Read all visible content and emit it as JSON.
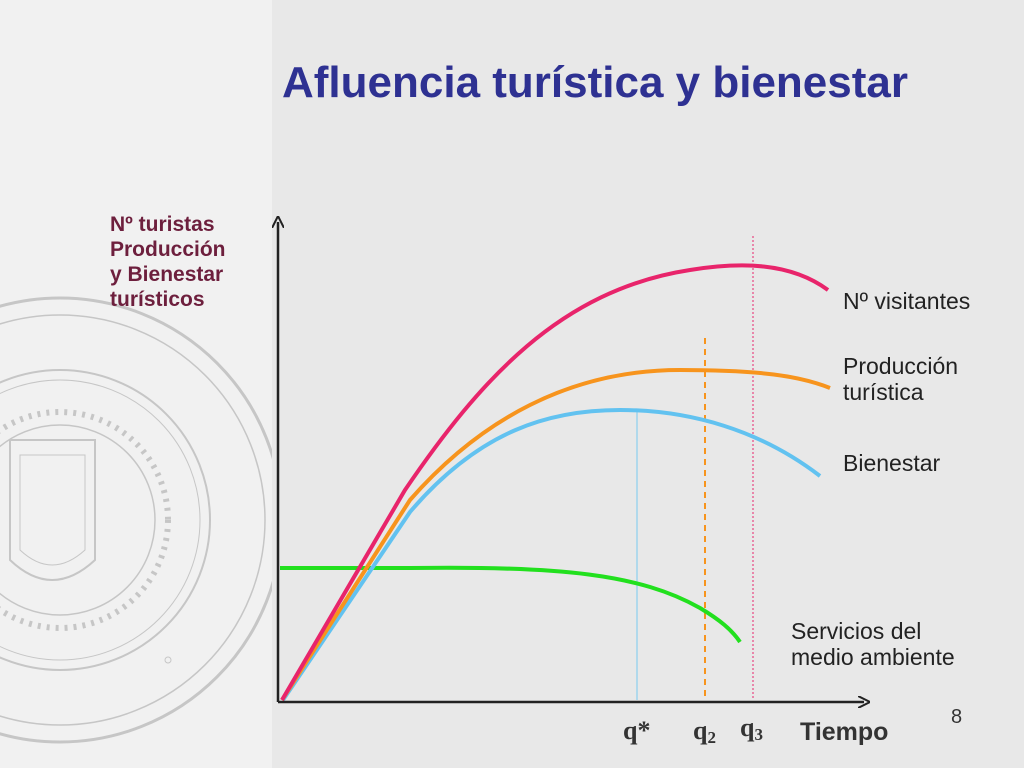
{
  "slide": {
    "title": "Afluencia turística y bienestar",
    "page_number": "8",
    "colors": {
      "title": "#2e3192",
      "ylabel": "#6d1f3d",
      "background": "#e8e8e8",
      "panel": "#f1f1f1"
    }
  },
  "chart_data": {
    "type": "line",
    "title": "Afluencia turística y bienestar",
    "ylabel_lines": [
      "Nº turistas",
      "Producción",
      "y Bienestar",
      "turísticos"
    ],
    "xlabel": "Tiempo",
    "grid": false,
    "series": [
      {
        "name": "Nº visitantes",
        "label_lines": [
          "Nº visitantes"
        ],
        "color": "#e8246b"
      },
      {
        "name": "Producción turística",
        "label_lines": [
          "Producción",
          "turística"
        ],
        "color": "#f7941d"
      },
      {
        "name": "Bienestar",
        "label_lines": [
          "Bienestar"
        ],
        "color": "#62c2f0"
      },
      {
        "name": "Servicios del medio ambiente",
        "label_lines": [
          "Servicios del",
          "medio ambiente"
        ],
        "color": "#22e01e"
      }
    ],
    "markers": [
      {
        "label": "q",
        "suffix": "*",
        "subscript": "",
        "series": "Bienestar",
        "line_style": "solid",
        "color": "#9ed4ee"
      },
      {
        "label": "q",
        "suffix": "",
        "subscript": "2",
        "series": "Producción turística",
        "line_style": "dashed",
        "color": "#f7941d"
      },
      {
        "label": "q",
        "suffix": "",
        "subscript": "3",
        "series": "Nº visitantes",
        "line_style": "dotted",
        "color": "#e8246b"
      }
    ]
  }
}
